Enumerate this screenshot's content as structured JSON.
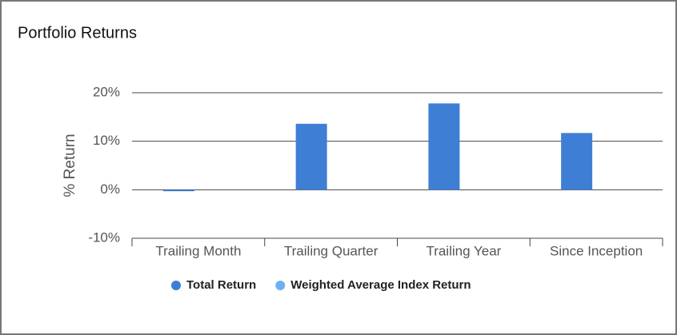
{
  "chart_data": {
    "type": "bar",
    "title": "Portfolio Returns",
    "y_label": "% Return",
    "categories": [
      "Trailing Month",
      "Trailing Quarter",
      "Trailing Year",
      "Since Inception"
    ],
    "series": [
      {
        "name": "Total Return",
        "color": "#3e7fd5",
        "values": [
          -0.3,
          13.6,
          17.8,
          11.7
        ]
      },
      {
        "name": "Weighted Average Index Return",
        "color": "#6eb0f2",
        "values": [
          null,
          null,
          null,
          null
        ]
      }
    ],
    "ylim": [
      -10,
      20
    ],
    "yticks": [
      {
        "value": -10,
        "label": "-10%"
      },
      {
        "value": 0,
        "label": "0%"
      },
      {
        "value": 10,
        "label": "10%"
      },
      {
        "value": 20,
        "label": "20%"
      }
    ],
    "grid": true,
    "legend": "bottom"
  }
}
